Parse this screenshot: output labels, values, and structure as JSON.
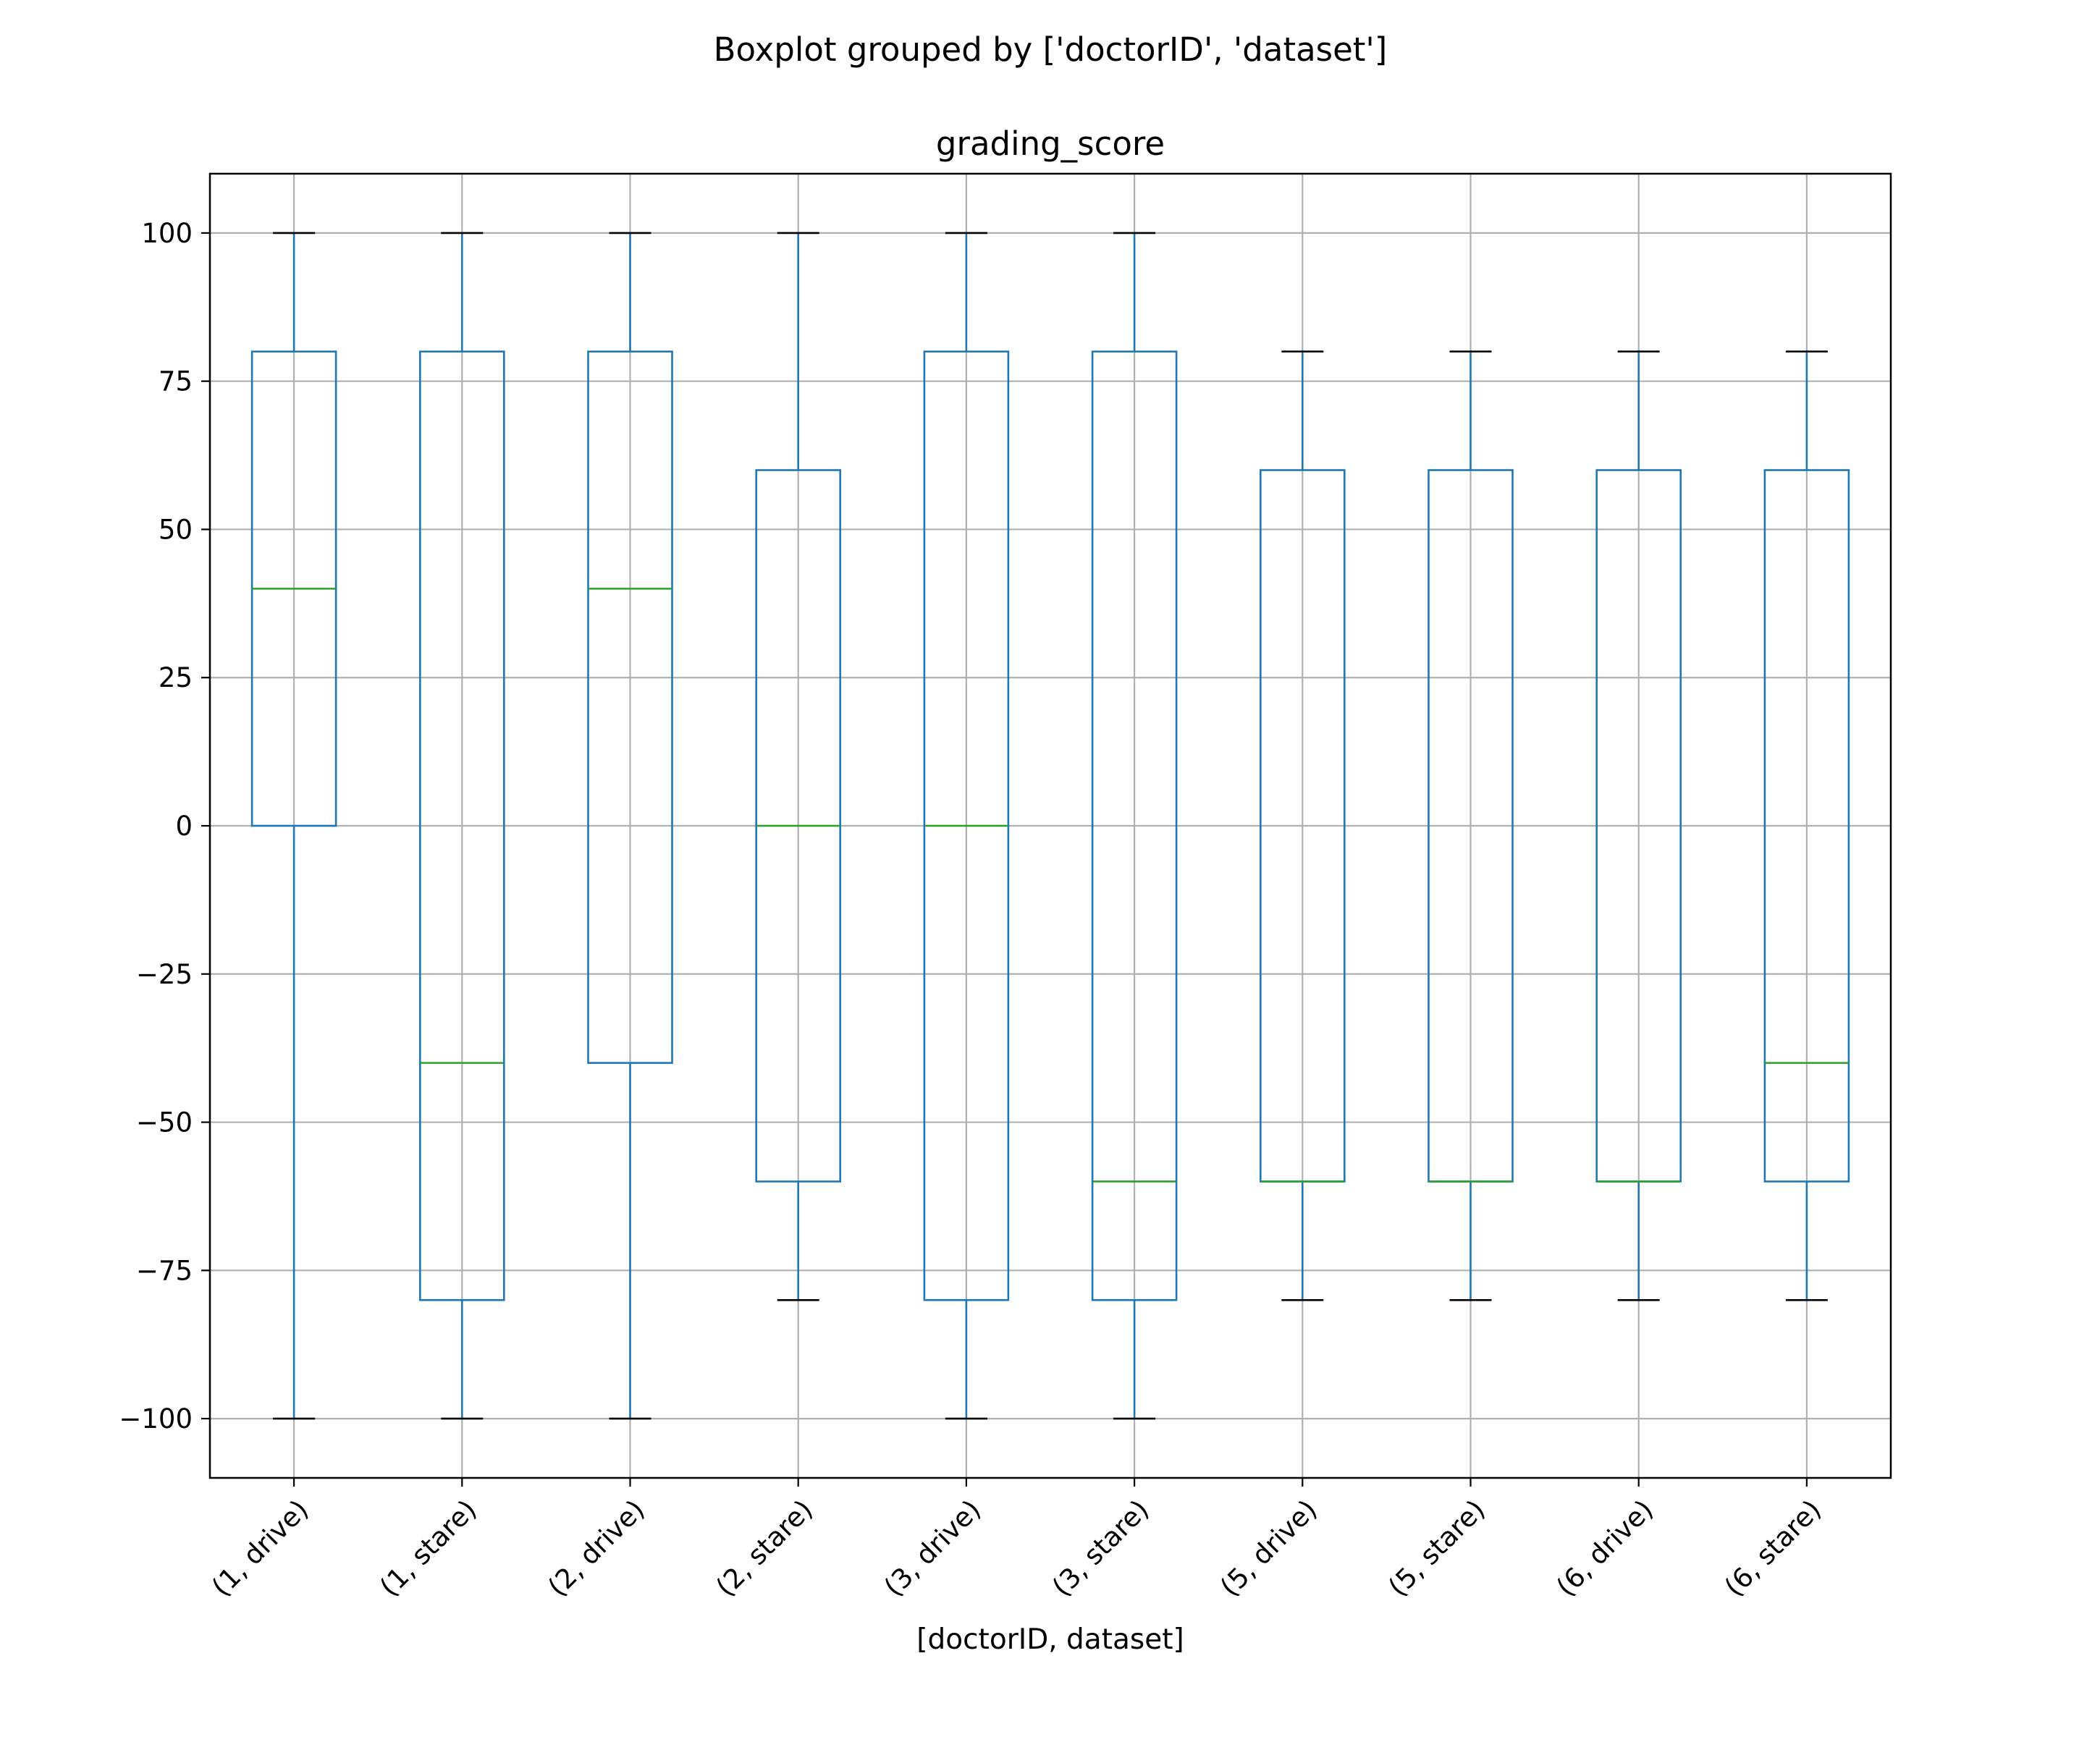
{
  "chart_data": {
    "type": "boxplot",
    "suptitle": "Boxplot grouped by ['doctorID', 'dataset']",
    "title": "grading_score",
    "xlabel": "[doctorID, dataset]",
    "ylabel": "",
    "ylim": [
      -110,
      110
    ],
    "yticks": [
      -100,
      -75,
      -50,
      -25,
      0,
      25,
      50,
      75,
      100
    ],
    "ytick_labels": [
      "−100",
      "−75",
      "−50",
      "−25",
      "0",
      "25",
      "50",
      "75",
      "100"
    ],
    "grid": true,
    "colors": {
      "box": "#1f77b4",
      "median": "#2ca02c",
      "cap": "#000000",
      "grid": "#b0b0b0"
    },
    "categories": [
      "(1, drive)",
      "(1, stare)",
      "(2, drive)",
      "(2, stare)",
      "(3, drive)",
      "(3, stare)",
      "(5, drive)",
      "(5, stare)",
      "(6, drive)",
      "(6, stare)"
    ],
    "boxes": [
      {
        "whisker_low": -100,
        "q1": 0,
        "median": 40,
        "q3": 80,
        "whisker_high": 100
      },
      {
        "whisker_low": -100,
        "q1": -80,
        "median": -40,
        "q3": 80,
        "whisker_high": 100
      },
      {
        "whisker_low": -100,
        "q1": -40,
        "median": 40,
        "q3": 80,
        "whisker_high": 100
      },
      {
        "whisker_low": -80,
        "q1": -60,
        "median": 0,
        "q3": 60,
        "whisker_high": 100
      },
      {
        "whisker_low": -100,
        "q1": -80,
        "median": 0,
        "q3": 80,
        "whisker_high": 100
      },
      {
        "whisker_low": -100,
        "q1": -80,
        "median": -60,
        "q3": 80,
        "whisker_high": 100
      },
      {
        "whisker_low": -80,
        "q1": -60,
        "median": -60,
        "q3": 60,
        "whisker_high": 80
      },
      {
        "whisker_low": -80,
        "q1": -60,
        "median": -60,
        "q3": 60,
        "whisker_high": 80
      },
      {
        "whisker_low": -80,
        "q1": -60,
        "median": -60,
        "q3": 60,
        "whisker_high": 80
      },
      {
        "whisker_low": -80,
        "q1": -60,
        "median": -40,
        "q3": 60,
        "whisker_high": 80
      }
    ]
  }
}
